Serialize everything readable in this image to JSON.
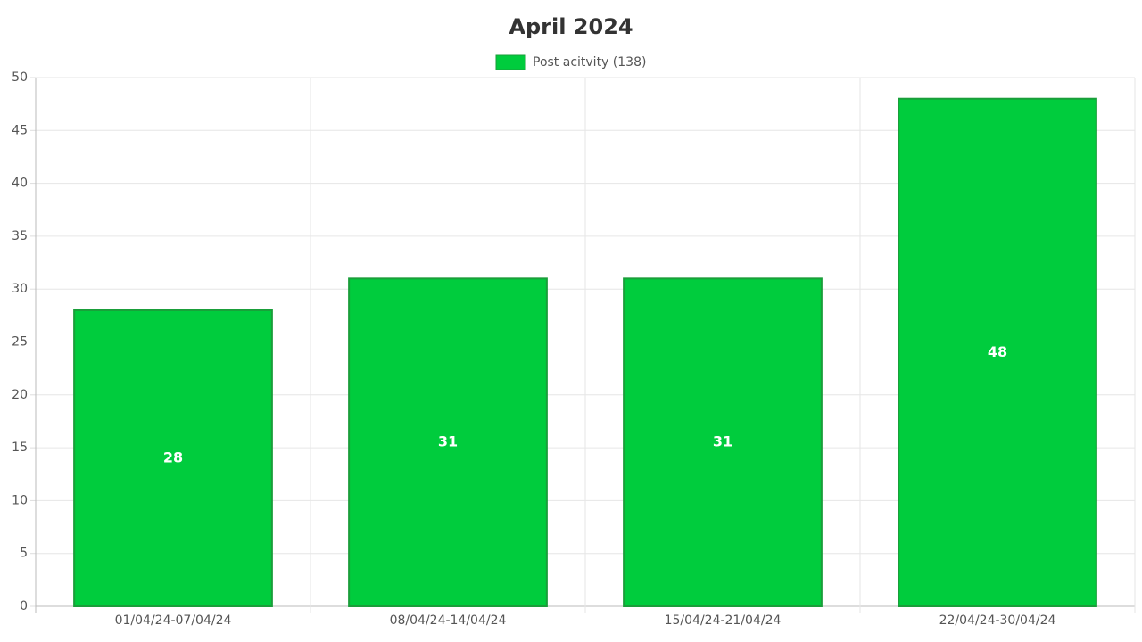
{
  "chart_data": {
    "type": "bar",
    "title": "April 2024",
    "categories": [
      "01/04/24-07/04/24",
      "08/04/24-14/04/24",
      "15/04/24-21/04/24",
      "22/04/24-30/04/24"
    ],
    "series": [
      {
        "name": "Post acitvity (138)",
        "color": "#00cc3d",
        "border_color": "#1a9e3a",
        "values": [
          28,
          31,
          31,
          48
        ]
      }
    ],
    "ylim": [
      0,
      50
    ],
    "yticks": [
      0,
      5,
      10,
      15,
      20,
      25,
      30,
      35,
      40,
      45,
      50
    ],
    "grid": true,
    "legend": "top"
  }
}
